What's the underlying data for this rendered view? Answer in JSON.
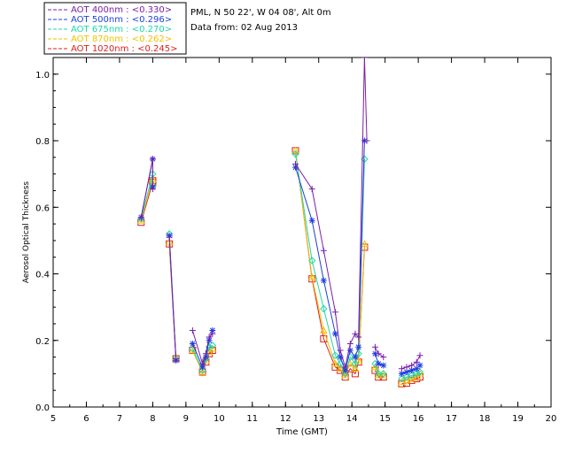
{
  "chart_data": {
    "type": "line",
    "title_lines": [
      "PML, N 50 22', W 04 08', Alt 0m",
      "Data from: 02 Aug 2013"
    ],
    "xlabel": "Time (GMT)",
    "ylabel": "Aerosol Optical Thickness",
    "xlim": [
      5,
      20
    ],
    "ylim": [
      0,
      1.05
    ],
    "xticks": [
      5,
      6,
      7,
      8,
      9,
      10,
      11,
      12,
      13,
      14,
      15,
      16,
      17,
      18,
      19,
      20
    ],
    "yticks": [
      0.0,
      0.2,
      0.4,
      0.6,
      0.8,
      1.0
    ],
    "ytick_labels": [
      "0.0",
      "0.2",
      "0.4",
      "0.6",
      "0.8",
      "1.0"
    ],
    "grid": false,
    "legend_position": "top-left, outside plot",
    "series": [
      {
        "name": "AOT 400nm : <0.330>",
        "color": "#7a1fa8",
        "marker": "plus",
        "segments": [
          [
            [
              7.65,
              0.57
            ],
            [
              8.0,
              0.745
            ],
            [
              8.0,
              0.655
            ]
          ],
          [
            [
              8.5,
              0.51
            ],
            [
              8.7,
              0.145
            ]
          ],
          [
            [
              9.2,
              0.23
            ],
            [
              9.5,
              0.13
            ],
            [
              9.6,
              0.16
            ],
            [
              9.7,
              0.21
            ],
            [
              9.8,
              0.22
            ]
          ],
          [
            [
              12.3,
              0.73
            ],
            [
              12.8,
              0.655
            ],
            [
              13.15,
              0.47
            ],
            [
              13.5,
              0.285
            ],
            [
              13.65,
              0.17
            ],
            [
              13.8,
              0.12
            ],
            [
              13.95,
              0.19
            ],
            [
              14.1,
              0.22
            ],
            [
              14.2,
              0.21
            ],
            [
              14.38,
              1.05
            ],
            [
              14.45,
              0.8
            ]
          ],
          [
            [
              14.7,
              0.18
            ],
            [
              14.8,
              0.16
            ],
            [
              14.95,
              0.15
            ]
          ],
          [
            [
              15.5,
              0.115
            ],
            [
              15.65,
              0.12
            ],
            [
              15.8,
              0.125
            ],
            [
              15.95,
              0.135
            ],
            [
              16.05,
              0.155
            ]
          ]
        ]
      },
      {
        "name": "AOT 500nm : <0.296>",
        "color": "#1f3fe0",
        "marker": "asterisk",
        "segments": [
          [
            [
              7.65,
              0.57
            ],
            [
              8.0,
              0.745
            ],
            [
              8.0,
              0.66
            ]
          ],
          [
            [
              8.5,
              0.515
            ],
            [
              8.7,
              0.14
            ]
          ],
          [
            [
              9.2,
              0.19
            ],
            [
              9.5,
              0.12
            ],
            [
              9.6,
              0.15
            ],
            [
              9.7,
              0.2
            ],
            [
              9.8,
              0.23
            ]
          ],
          [
            [
              12.3,
              0.72
            ],
            [
              12.8,
              0.56
            ],
            [
              13.15,
              0.38
            ],
            [
              13.5,
              0.22
            ],
            [
              13.65,
              0.15
            ],
            [
              13.8,
              0.11
            ],
            [
              13.95,
              0.17
            ],
            [
              14.1,
              0.15
            ],
            [
              14.2,
              0.18
            ],
            [
              14.38,
              0.8
            ]
          ],
          [
            [
              14.7,
              0.16
            ],
            [
              14.8,
              0.13
            ],
            [
              14.95,
              0.125
            ]
          ],
          [
            [
              15.5,
              0.1
            ],
            [
              15.65,
              0.105
            ],
            [
              15.8,
              0.11
            ],
            [
              15.95,
              0.115
            ],
            [
              16.05,
              0.125
            ]
          ]
        ]
      },
      {
        "name": "AOT 675nm : <0.270>",
        "color": "#22d6a8",
        "marker": "diamond",
        "segments": [
          [
            [
              7.65,
              0.565
            ],
            [
              8.0,
              0.7
            ],
            [
              8.0,
              0.665
            ]
          ],
          [
            [
              8.5,
              0.52
            ],
            [
              8.7,
              0.145
            ]
          ],
          [
            [
              9.2,
              0.175
            ],
            [
              9.5,
              0.11
            ],
            [
              9.6,
              0.145
            ],
            [
              9.7,
              0.18
            ],
            [
              9.8,
              0.185
            ]
          ],
          [
            [
              12.3,
              0.76
            ],
            [
              12.8,
              0.44
            ],
            [
              13.15,
              0.295
            ],
            [
              13.5,
              0.155
            ],
            [
              13.65,
              0.13
            ],
            [
              13.8,
              0.1
            ],
            [
              13.95,
              0.15
            ],
            [
              14.1,
              0.13
            ],
            [
              14.2,
              0.16
            ],
            [
              14.38,
              0.745
            ]
          ],
          [
            [
              14.7,
              0.13
            ],
            [
              14.8,
              0.1
            ],
            [
              14.95,
              0.1
            ]
          ],
          [
            [
              15.5,
              0.085
            ],
            [
              15.65,
              0.09
            ],
            [
              15.8,
              0.095
            ],
            [
              15.95,
              0.1
            ],
            [
              16.05,
              0.105
            ]
          ]
        ]
      },
      {
        "name": "AOT 870nm : <0.262>",
        "color": "#f2c200",
        "marker": "triangle",
        "segments": [
          [
            [
              7.65,
              0.56
            ],
            [
              8.0,
              0.685
            ],
            [
              8.0,
              0.67
            ]
          ],
          [
            [
              8.5,
              0.495
            ],
            [
              8.7,
              0.15
            ]
          ],
          [
            [
              9.2,
              0.17
            ],
            [
              9.5,
              0.105
            ],
            [
              9.6,
              0.14
            ],
            [
              9.7,
              0.165
            ],
            [
              9.8,
              0.175
            ]
          ],
          [
            [
              12.3,
              0.77
            ],
            [
              12.8,
              0.39
            ],
            [
              13.15,
              0.23
            ],
            [
              13.5,
              0.13
            ],
            [
              13.65,
              0.115
            ],
            [
              13.8,
              0.095
            ],
            [
              13.95,
              0.13
            ],
            [
              14.1,
              0.115
            ],
            [
              14.2,
              0.14
            ],
            [
              14.38,
              0.49
            ]
          ],
          [
            [
              14.7,
              0.12
            ],
            [
              14.8,
              0.095
            ],
            [
              14.95,
              0.095
            ]
          ],
          [
            [
              15.5,
              0.075
            ],
            [
              15.65,
              0.08
            ],
            [
              15.8,
              0.085
            ],
            [
              15.95,
              0.09
            ],
            [
              16.05,
              0.1
            ]
          ]
        ]
      },
      {
        "name": "AOT 1020nm : <0.245>",
        "color": "#dd1f1f",
        "marker": "square",
        "segments": [
          [
            [
              7.65,
              0.555
            ],
            [
              8.0,
              0.675
            ],
            [
              8.0,
              0.68
            ]
          ],
          [
            [
              8.5,
              0.49
            ],
            [
              8.7,
              0.145
            ]
          ],
          [
            [
              9.2,
              0.17
            ],
            [
              9.5,
              0.105
            ],
            [
              9.6,
              0.135
            ],
            [
              9.7,
              0.16
            ],
            [
              9.8,
              0.17
            ]
          ],
          [
            [
              12.3,
              0.77
            ],
            [
              12.8,
              0.385
            ],
            [
              13.15,
              0.205
            ],
            [
              13.5,
              0.12
            ],
            [
              13.65,
              0.11
            ],
            [
              13.8,
              0.09
            ],
            [
              13.95,
              0.115
            ],
            [
              14.1,
              0.1
            ],
            [
              14.2,
              0.135
            ],
            [
              14.38,
              0.48
            ]
          ],
          [
            [
              14.7,
              0.11
            ],
            [
              14.8,
              0.09
            ],
            [
              14.95,
              0.09
            ]
          ],
          [
            [
              15.5,
              0.07
            ],
            [
              15.65,
              0.072
            ],
            [
              15.8,
              0.08
            ],
            [
              15.95,
              0.085
            ],
            [
              16.05,
              0.09
            ]
          ]
        ]
      }
    ]
  }
}
